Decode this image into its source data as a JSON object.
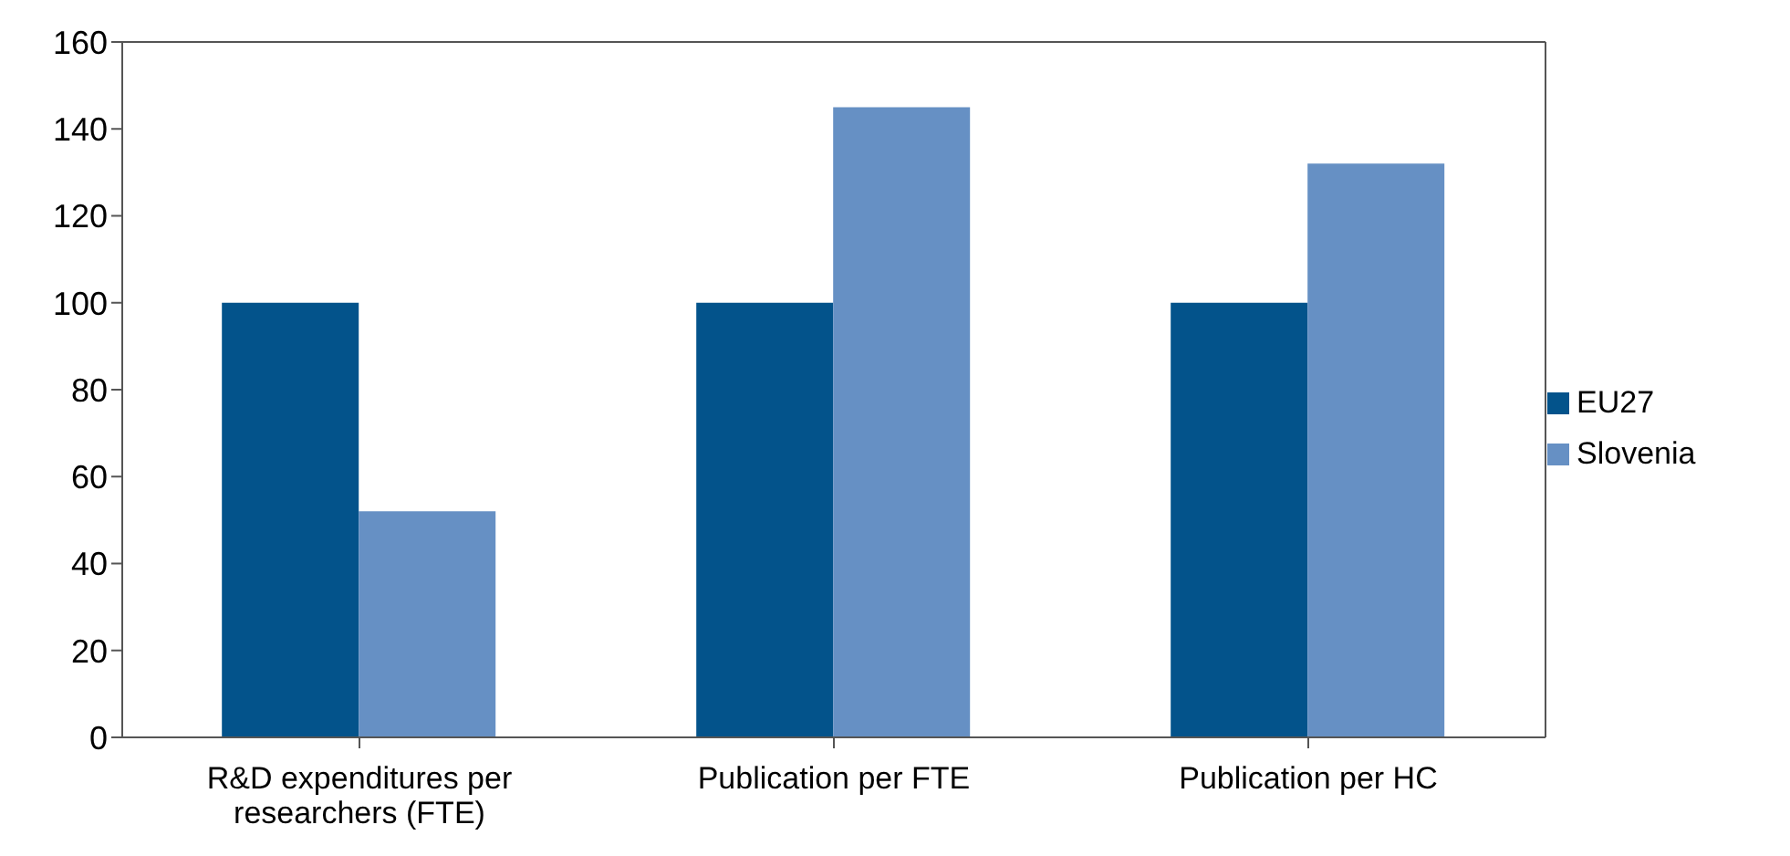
{
  "chart_data": {
    "type": "bar",
    "categories": [
      "R&D expenditures per researchers (FTE)",
      "Publication per FTE",
      "Publication per HC"
    ],
    "series": [
      {
        "name": "EU27",
        "color": "#03538b",
        "values": [
          100,
          100,
          100
        ]
      },
      {
        "name": "Slovenia",
        "color": "#6690c4",
        "values": [
          52,
          145,
          132
        ]
      }
    ],
    "ylim": [
      0,
      160
    ],
    "yticks": [
      0,
      20,
      40,
      60,
      80,
      100,
      120,
      140,
      160
    ],
    "grid": false,
    "legend": "right"
  }
}
